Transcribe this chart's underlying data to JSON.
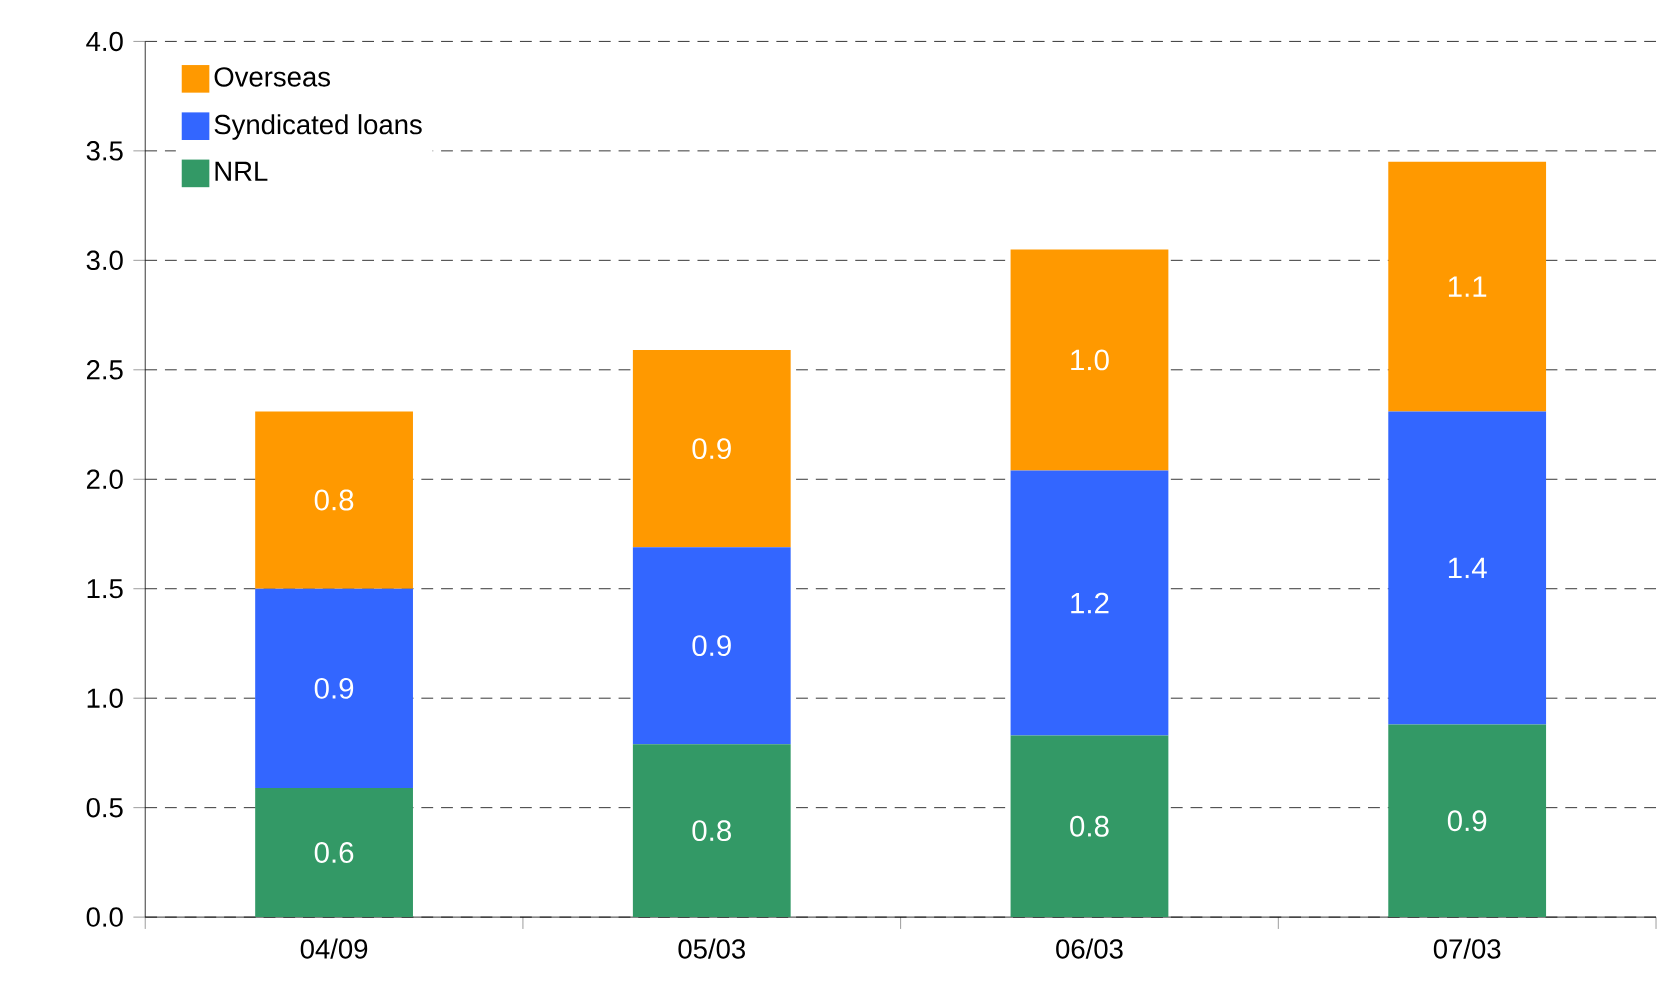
{
  "chart_data": {
    "type": "bar",
    "stacked": true,
    "categories": [
      "04/09",
      "05/03",
      "06/03",
      "07/03"
    ],
    "series": [
      {
        "name": "NRL",
        "color": "#339966",
        "values": [
          0.59,
          0.79,
          0.83,
          0.88
        ],
        "value_labels": [
          "0.6",
          "0.8",
          "0.8",
          "0.9"
        ]
      },
      {
        "name": "Syndicated loans",
        "color": "#3366ff",
        "values": [
          0.91,
          0.9,
          1.21,
          1.43
        ],
        "value_labels": [
          "0.9",
          "0.9",
          "1.2",
          "1.4"
        ]
      },
      {
        "name": "Overseas",
        "color": "#ff9900",
        "values": [
          0.81,
          0.9,
          1.01,
          1.14
        ],
        "value_labels": [
          "0.8",
          "0.9",
          "1.0",
          "1.1"
        ]
      }
    ],
    "ylim": [
      0,
      4
    ],
    "yticks": [
      {
        "value": 0,
        "label": "0.0"
      },
      {
        "value": 0.5,
        "label": "0.5"
      },
      {
        "value": 1,
        "label": "1.0"
      },
      {
        "value": 1.5,
        "label": "1.5"
      },
      {
        "value": 2,
        "label": "2.0"
      },
      {
        "value": 2.5,
        "label": "2.5"
      },
      {
        "value": 3,
        "label": "3.0"
      },
      {
        "value": 3.5,
        "label": "3.5"
      },
      {
        "value": 4,
        "label": "4.0"
      }
    ],
    "grid": "y",
    "legend": "top left"
  }
}
